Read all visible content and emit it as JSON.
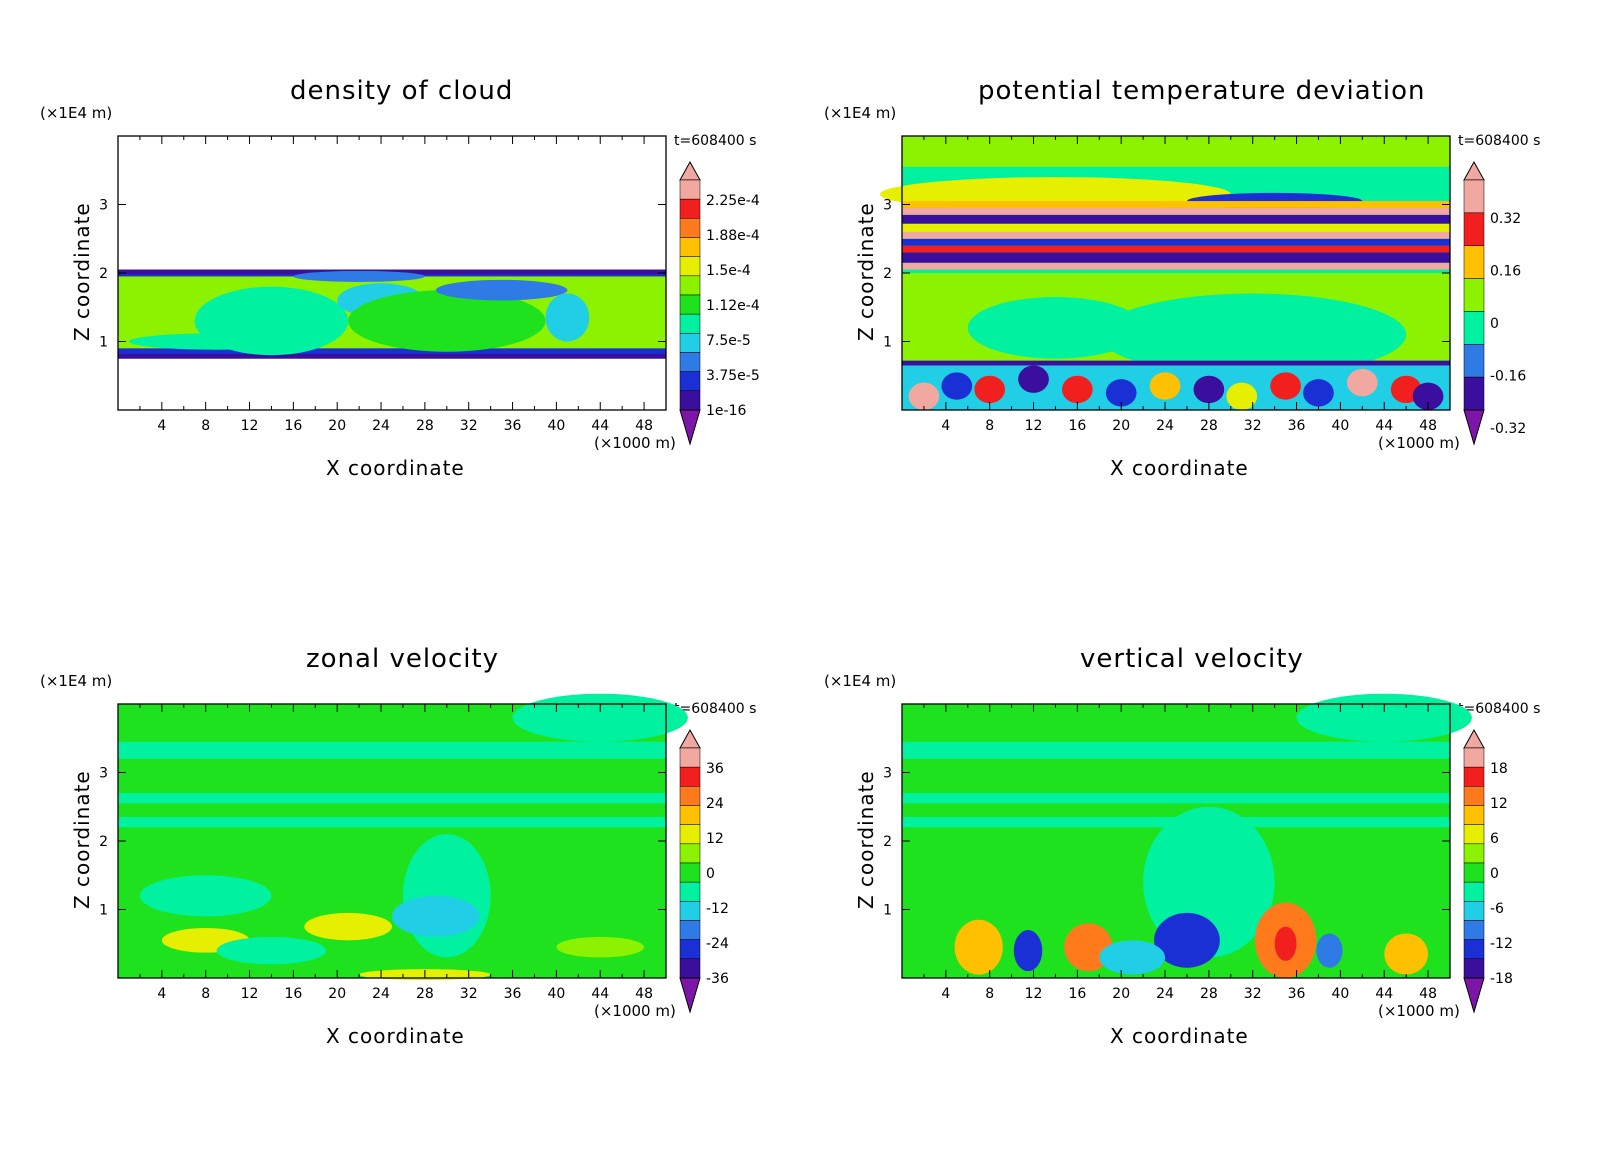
{
  "colors": {
    "palette": [
      "#7d16a8",
      "#3a0f9e",
      "#1a2fd4",
      "#2f7be6",
      "#20cfe6",
      "#00f2a0",
      "#1ee21e",
      "#8cf200",
      "#e6ef00",
      "#ffc000",
      "#ff7a1a",
      "#f21f1f",
      "#f0a8a0"
    ],
    "background": "#ffffff"
  },
  "chart_data": [
    {
      "id": "density",
      "type": "heatmap",
      "title": "density of cloud",
      "xlabel": "X coordinate",
      "ylabel": "Z coordinate",
      "x_unit": "(×1000 m)",
      "z_unit": "(×1E4 m)",
      "time_label": "t=608400 s",
      "xlim": [
        0,
        50
      ],
      "ylim": [
        0,
        4
      ],
      "x_ticks": [
        "4",
        "8",
        "12",
        "16",
        "20",
        "24",
        "28",
        "32",
        "36",
        "40",
        "44",
        "48"
      ],
      "y_ticks": [
        "1",
        "2",
        "3"
      ],
      "colorbar_labels": [
        "2.25e-4",
        "1.88e-4",
        "1.5e-4",
        "1.12e-4",
        "7.5e-5",
        "3.75e-5",
        "1e-16"
      ]
    },
    {
      "id": "theta",
      "type": "heatmap",
      "title": "potential temperature deviation",
      "xlabel": "X coordinate",
      "ylabel": "Z coordinate",
      "x_unit": "(×1000 m)",
      "z_unit": "(×1E4 m)",
      "time_label": "t=608400 s",
      "xlim": [
        0,
        50
      ],
      "ylim": [
        0,
        4
      ],
      "x_ticks": [
        "4",
        "8",
        "12",
        "16",
        "20",
        "24",
        "28",
        "32",
        "36",
        "40",
        "44",
        "48"
      ],
      "y_ticks": [
        "1",
        "2",
        "3"
      ],
      "colorbar_labels": [
        "0.32",
        "0.16",
        "0",
        "-0.16",
        "-0.32"
      ]
    },
    {
      "id": "zonal",
      "type": "heatmap",
      "title": "zonal velocity",
      "xlabel": "X coordinate",
      "ylabel": "Z coordinate",
      "x_unit": "(×1000 m)",
      "z_unit": "(×1E4 m)",
      "time_label": "t=608400 s",
      "xlim": [
        0,
        50
      ],
      "ylim": [
        0,
        4
      ],
      "x_ticks": [
        "4",
        "8",
        "12",
        "16",
        "20",
        "24",
        "28",
        "32",
        "36",
        "40",
        "44",
        "48"
      ],
      "y_ticks": [
        "1",
        "2",
        "3"
      ],
      "colorbar_labels": [
        "36",
        "24",
        "12",
        "0",
        "-12",
        "-24",
        "-36"
      ]
    },
    {
      "id": "vertical",
      "type": "heatmap",
      "title": "vertical velocity",
      "xlabel": "X coordinate",
      "ylabel": "Z coordinate",
      "x_unit": "(×1000 m)",
      "z_unit": "(×1E4 m)",
      "time_label": "t=608400 s",
      "xlim": [
        0,
        50
      ],
      "ylim": [
        0,
        4
      ],
      "x_ticks": [
        "4",
        "8",
        "12",
        "16",
        "20",
        "24",
        "28",
        "32",
        "36",
        "40",
        "44",
        "48"
      ],
      "y_ticks": [
        "1",
        "2",
        "3"
      ],
      "colorbar_labels": [
        "18",
        "12",
        "6",
        "0",
        "-6",
        "-12",
        "-18"
      ]
    }
  ]
}
